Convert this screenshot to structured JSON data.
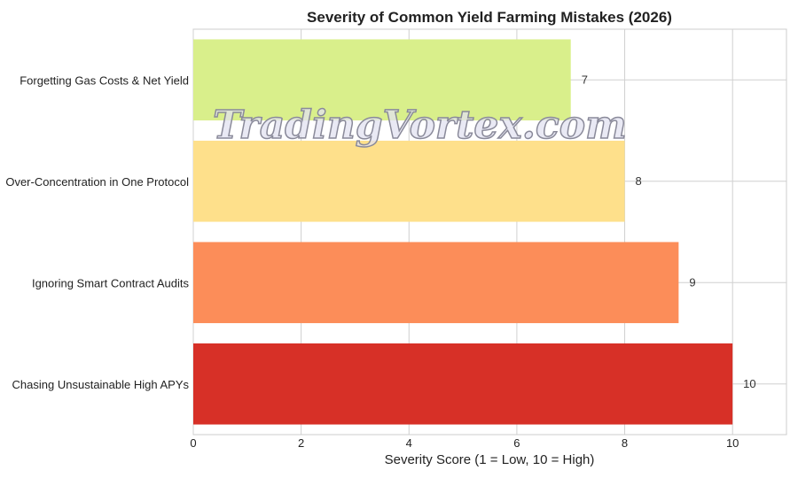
{
  "chart_data": {
    "type": "bar",
    "orientation": "horizontal",
    "title": "Severity of Common Yield Farming Mistakes (2026)",
    "xlabel": "Severity Score (1 = Low, 10 = High)",
    "ylabel": "",
    "categories": [
      "Forgetting Gas Costs & Net Yield",
      "Over-Concentration in One Protocol",
      "Ignoring Smart Contract Audits",
      "Chasing Unsustainable High APYs"
    ],
    "values": [
      7,
      8,
      9,
      10
    ],
    "data_labels": [
      "7",
      "8",
      "9",
      "10"
    ],
    "colors": [
      "#d9ef8b",
      "#fee08b",
      "#fc8d59",
      "#d73027"
    ],
    "xlim": [
      0,
      11
    ],
    "xticks": [
      0,
      2,
      4,
      6,
      8,
      10
    ],
    "grid": true,
    "legend": "none"
  },
  "watermark": "TradingVortex.com"
}
